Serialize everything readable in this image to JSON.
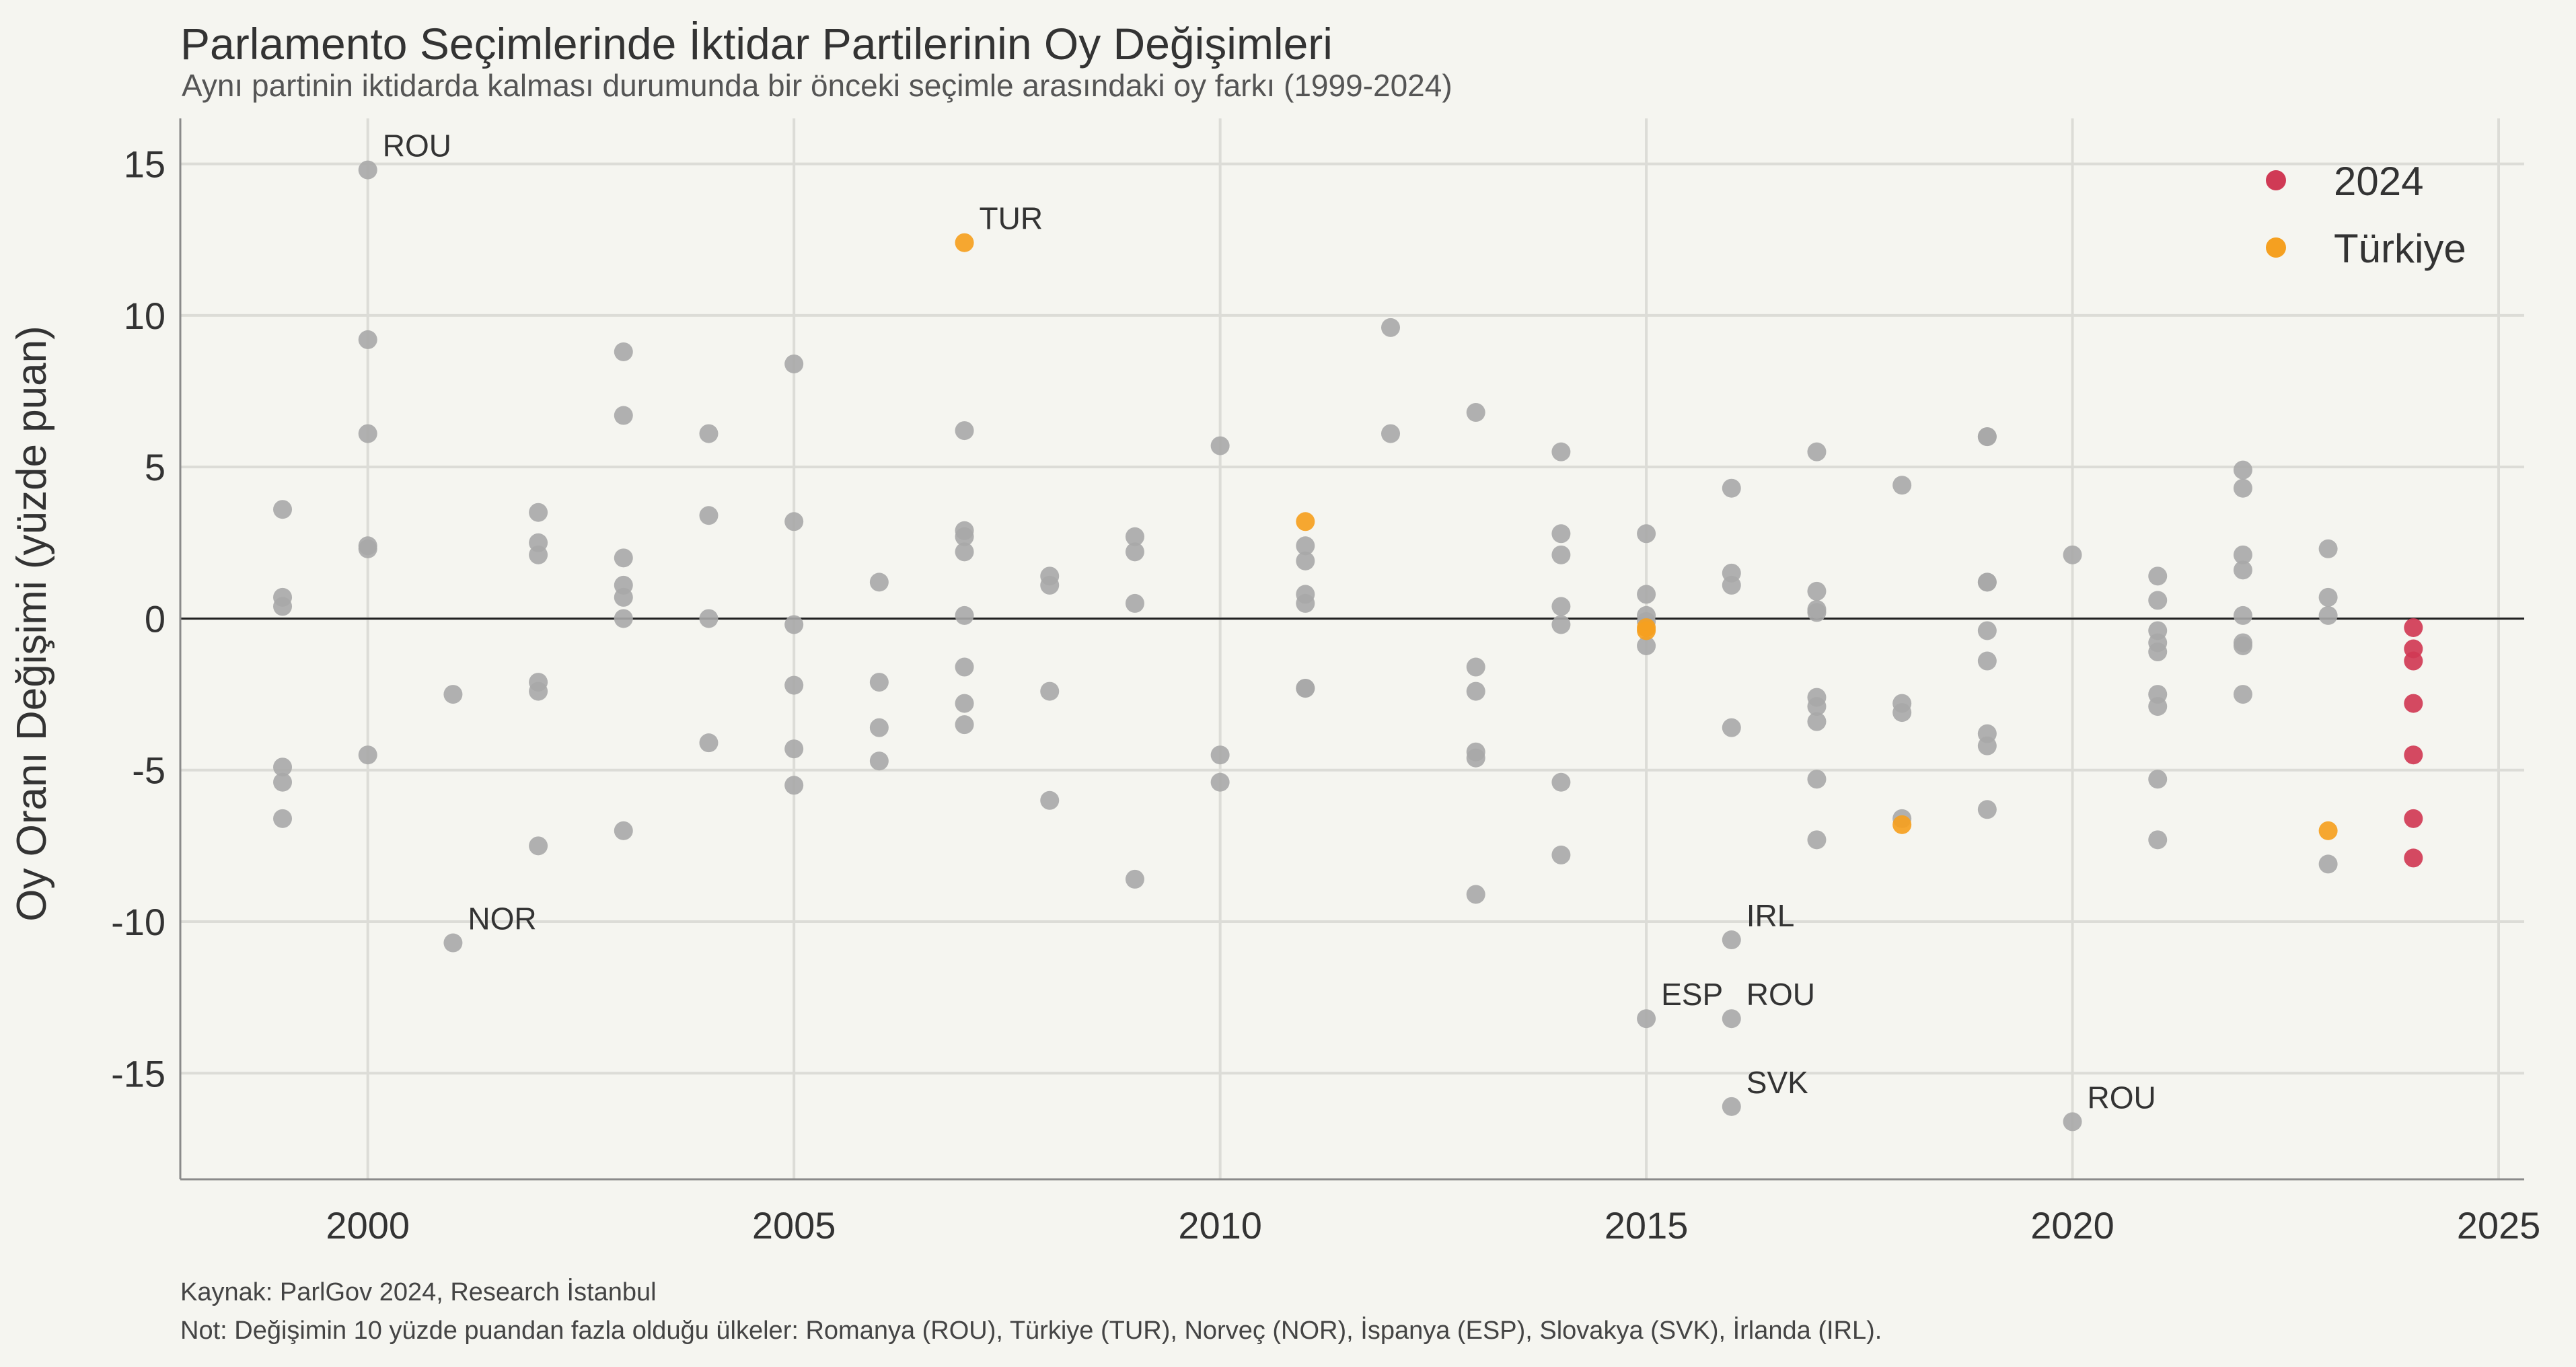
{
  "chart_data": {
    "type": "scatter",
    "title": "Parlamento Seçimlerinde İktidar Partilerinin Oy Değişimleri",
    "subtitle": "Aynı partinin iktidarda kalması durumunda bir önceki seçimle arasındaki oy farkı (1999-2024)",
    "xlabel": "",
    "ylabel": "Oy Oranı Değişimi (yüzde puan)",
    "xlim": [
      1997.8,
      2025.3
    ],
    "ylim": [
      -18.5,
      16.5
    ],
    "x_ticks": [
      2000,
      2005,
      2010,
      2015,
      2020,
      2025
    ],
    "y_ticks": [
      15,
      10,
      5,
      0,
      -5,
      -10,
      -15
    ],
    "y_tick_labels": [
      "15",
      "10",
      "5",
      "0",
      "-5",
      "-10",
      "-15"
    ],
    "grid": true,
    "zero_line": true,
    "legend_position": "top-right",
    "colors": {
      "other": "#a8a8a8",
      "y2024": "#d03a55",
      "turkiye": "#f5a020",
      "background": "#f5f5f0"
    },
    "legend": [
      {
        "label": "2024",
        "color": "#d03a55"
      },
      {
        "label": "Türkiye",
        "color": "#f5a020"
      }
    ],
    "series": [
      {
        "category": "other",
        "points": [
          [
            1999,
            3.6
          ],
          [
            1999,
            0.7
          ],
          [
            1999,
            0.4
          ],
          [
            1999,
            -4.9
          ],
          [
            1999,
            -5.4
          ],
          [
            1999,
            -6.6
          ],
          [
            2000,
            14.8
          ],
          [
            2000,
            9.2
          ],
          [
            2000,
            6.1
          ],
          [
            2000,
            2.4
          ],
          [
            2000,
            2.3
          ],
          [
            2000,
            -4.5
          ],
          [
            2001,
            -2.5
          ],
          [
            2001,
            -10.7
          ],
          [
            2002,
            3.5
          ],
          [
            2002,
            2.5
          ],
          [
            2002,
            2.1
          ],
          [
            2002,
            -2.1
          ],
          [
            2002,
            -2.4
          ],
          [
            2002,
            -7.5
          ],
          [
            2003,
            8.8
          ],
          [
            2003,
            6.7
          ],
          [
            2003,
            2.0
          ],
          [
            2003,
            1.1
          ],
          [
            2003,
            0.7
          ],
          [
            2003,
            0.0
          ],
          [
            2003,
            -7.0
          ],
          [
            2004,
            6.1
          ],
          [
            2004,
            3.4
          ],
          [
            2004,
            0.0
          ],
          [
            2004,
            -4.1
          ],
          [
            2005,
            8.4
          ],
          [
            2005,
            3.2
          ],
          [
            2005,
            -0.2
          ],
          [
            2005,
            -2.2
          ],
          [
            2005,
            -4.3
          ],
          [
            2005,
            -5.5
          ],
          [
            2006,
            1.2
          ],
          [
            2006,
            -2.1
          ],
          [
            2006,
            -3.6
          ],
          [
            2006,
            -4.7
          ],
          [
            2007,
            6.2
          ],
          [
            2007,
            2.9
          ],
          [
            2007,
            2.7
          ],
          [
            2007,
            2.2
          ],
          [
            2007,
            0.1
          ],
          [
            2007,
            -1.6
          ],
          [
            2007,
            -2.8
          ],
          [
            2007,
            -3.5
          ],
          [
            2008,
            1.4
          ],
          [
            2008,
            1.1
          ],
          [
            2008,
            -2.4
          ],
          [
            2008,
            -6.0
          ],
          [
            2009,
            2.7
          ],
          [
            2009,
            2.2
          ],
          [
            2009,
            0.5
          ],
          [
            2009,
            -8.6
          ],
          [
            2010,
            5.7
          ],
          [
            2010,
            -4.5
          ],
          [
            2010,
            -5.4
          ],
          [
            2011,
            2.4
          ],
          [
            2011,
            1.9
          ],
          [
            2011,
            0.8
          ],
          [
            2011,
            0.5
          ],
          [
            2011,
            -2.3
          ],
          [
            2011,
            -2.3
          ],
          [
            2012,
            9.6
          ],
          [
            2012,
            6.1
          ],
          [
            2013,
            6.8
          ],
          [
            2013,
            -1.6
          ],
          [
            2013,
            -2.4
          ],
          [
            2013,
            -4.4
          ],
          [
            2013,
            -4.6
          ],
          [
            2013,
            -9.1
          ],
          [
            2014,
            5.5
          ],
          [
            2014,
            2.8
          ],
          [
            2014,
            2.1
          ],
          [
            2014,
            0.4
          ],
          [
            2014,
            -0.2
          ],
          [
            2014,
            -5.4
          ],
          [
            2014,
            -7.8
          ],
          [
            2015,
            2.8
          ],
          [
            2015,
            0.8
          ],
          [
            2015,
            0.1
          ],
          [
            2015,
            -0.1
          ],
          [
            2015,
            -0.9
          ],
          [
            2015,
            -13.2
          ],
          [
            2016,
            4.3
          ],
          [
            2016,
            1.5
          ],
          [
            2016,
            1.1
          ],
          [
            2016,
            -3.6
          ],
          [
            2016,
            -10.6
          ],
          [
            2016,
            -13.2
          ],
          [
            2016,
            -16.1
          ],
          [
            2017,
            5.5
          ],
          [
            2017,
            0.9
          ],
          [
            2017,
            0.3
          ],
          [
            2017,
            0.2
          ],
          [
            2017,
            -2.6
          ],
          [
            2017,
            -2.9
          ],
          [
            2017,
            -3.4
          ],
          [
            2017,
            -5.3
          ],
          [
            2017,
            -7.3
          ],
          [
            2018,
            4.4
          ],
          [
            2018,
            -2.8
          ],
          [
            2018,
            -3.1
          ],
          [
            2018,
            -6.6
          ],
          [
            2019,
            6.0
          ],
          [
            2019,
            6.0
          ],
          [
            2019,
            1.2
          ],
          [
            2019,
            1.2
          ],
          [
            2019,
            -0.4
          ],
          [
            2019,
            -1.4
          ],
          [
            2019,
            -3.8
          ],
          [
            2019,
            -4.2
          ],
          [
            2019,
            -6.3
          ],
          [
            2020,
            2.1
          ],
          [
            2020,
            -16.6
          ],
          [
            2021,
            1.4
          ],
          [
            2021,
            0.6
          ],
          [
            2021,
            -0.4
          ],
          [
            2021,
            -0.8
          ],
          [
            2021,
            -1.1
          ],
          [
            2021,
            -2.5
          ],
          [
            2021,
            -2.9
          ],
          [
            2021,
            -5.3
          ],
          [
            2021,
            -7.3
          ],
          [
            2022,
            4.9
          ],
          [
            2022,
            4.3
          ],
          [
            2022,
            2.1
          ],
          [
            2022,
            1.6
          ],
          [
            2022,
            0.1
          ],
          [
            2022,
            -0.8
          ],
          [
            2022,
            -0.9
          ],
          [
            2022,
            -2.5
          ],
          [
            2023,
            2.3
          ],
          [
            2023,
            0.7
          ],
          [
            2023,
            0.1
          ],
          [
            2023,
            -8.1
          ]
        ]
      },
      {
        "category": "y2024",
        "points": [
          [
            2024,
            -0.3
          ],
          [
            2024,
            -1.0
          ],
          [
            2024,
            -1.4
          ],
          [
            2024,
            -2.8
          ],
          [
            2024,
            -4.5
          ],
          [
            2024,
            -6.6
          ],
          [
            2024,
            -7.9
          ]
        ]
      },
      {
        "category": "turkiye",
        "points": [
          [
            2007,
            12.4
          ],
          [
            2011,
            3.2
          ],
          [
            2015,
            -0.3
          ],
          [
            2015,
            -0.4
          ],
          [
            2018,
            -6.8
          ],
          [
            2023,
            -7.0
          ]
        ]
      }
    ],
    "annotations": [
      {
        "text": "ROU",
        "x": 2000,
        "y": 14.8
      },
      {
        "text": "TUR",
        "x": 2007,
        "y": 12.4
      },
      {
        "text": "NOR",
        "x": 2001,
        "y": -10.7
      },
      {
        "text": "IRL",
        "x": 2016,
        "y": -10.6
      },
      {
        "text": "ESP",
        "x": 2015,
        "y": -13.2
      },
      {
        "text": "ROU",
        "x": 2016,
        "y": -13.2
      },
      {
        "text": "SVK",
        "x": 2016,
        "y": -16.1
      },
      {
        "text": "ROU",
        "x": 2020,
        "y": -16.6
      }
    ]
  },
  "footer": {
    "source": "Kaynak: ParlGov 2024, Research İstanbul",
    "note": "Not: Değişimin 10 yüzde puandan fazla olduğu ülkeler: Romanya (ROU), Türkiye (TUR), Norveç (NOR), İspanya (ESP), Slovakya (SVK), İrlanda (IRL)."
  }
}
